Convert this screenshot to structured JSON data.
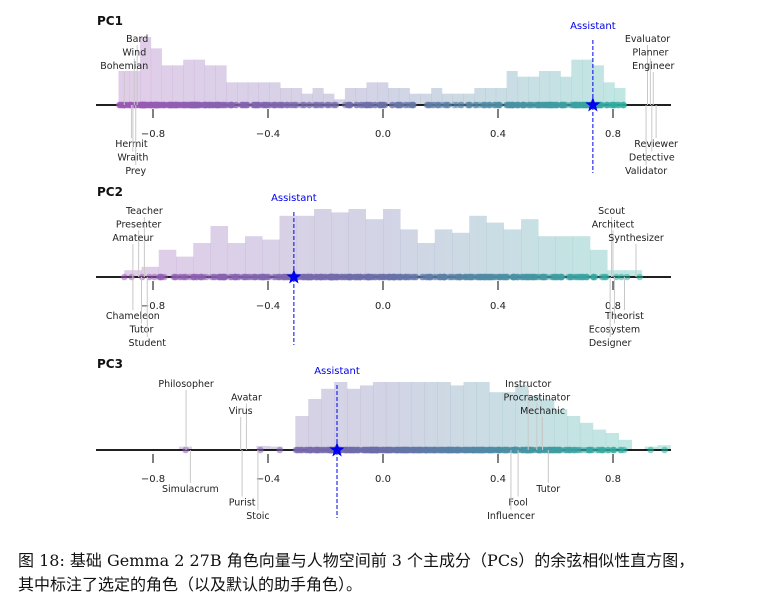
{
  "chart_data": [
    {
      "type": "histogram",
      "title": "PC1",
      "xlim": [
        -0.93,
        0.99
      ],
      "xticks": [
        -0.8,
        -0.4,
        0.0,
        0.4,
        0.8
      ],
      "xtick_labels": [
        "−0.8",
        "−0.4",
        "0.0",
        "0.4",
        "0.8"
      ],
      "bins_start": -0.92,
      "bin_width": 0.0375,
      "counts": [
        6,
        6,
        12,
        10,
        7,
        7,
        8,
        8,
        7,
        7,
        4,
        4,
        4,
        4,
        4,
        3,
        3,
        2,
        3,
        2,
        1,
        3,
        3,
        4,
        4,
        3,
        3,
        2,
        2,
        3,
        2,
        2,
        2,
        3,
        3,
        3,
        6,
        5,
        5,
        6,
        6,
        5,
        8,
        8,
        7,
        4,
        3,
        0
      ],
      "assistant": {
        "label": "Assistant",
        "value": 0.73
      },
      "annotations_above": [
        {
          "label": "Bard",
          "value": -0.855
        },
        {
          "label": "Wind",
          "value": -0.865
        },
        {
          "label": "Bohemian",
          "value": -0.9
        }
      ],
      "annotations_below": [
        {
          "label": "Hermit",
          "value": -0.875
        },
        {
          "label": "Wraith",
          "value": -0.87
        },
        {
          "label": "Prey",
          "value": -0.86
        }
      ],
      "annotations_above_right": [
        {
          "label": "Evaluator",
          "value": 0.92
        },
        {
          "label": "Planner",
          "value": 0.93
        },
        {
          "label": "Engineer",
          "value": 0.94
        }
      ],
      "annotations_below_right": [
        {
          "label": "Reviewer",
          "value": 0.95
        },
        {
          "label": "Detective",
          "value": 0.935
        },
        {
          "label": "Validator",
          "value": 0.915
        }
      ]
    },
    {
      "type": "histogram",
      "title": "PC2",
      "xlim": [
        -0.93,
        0.99
      ],
      "xticks": [
        -0.8,
        -0.4,
        0.0,
        0.4,
        0.8
      ],
      "xtick_labels": [
        "−0.8",
        "−0.4",
        "0.0",
        "0.4",
        "0.8"
      ],
      "bins_start": -0.9,
      "bin_width": 0.06,
      "counts": [
        1,
        1.5,
        4,
        3,
        5,
        7.5,
        5,
        6,
        5.5,
        9,
        9,
        10,
        9.5,
        10,
        8.5,
        10,
        7,
        5,
        7,
        6.5,
        9,
        8,
        7,
        8.5,
        6,
        6,
        6,
        4,
        1,
        1
      ],
      "assistant": {
        "label": "Assistant",
        "value": -0.31
      },
      "annotations_above": [
        {
          "label": "Teacher",
          "value": -0.83
        },
        {
          "label": "Presenter",
          "value": -0.85
        },
        {
          "label": "Amateur",
          "value": -0.87
        }
      ],
      "annotations_below": [
        {
          "label": "Chameleon",
          "value": -0.87
        },
        {
          "label": "Tutor",
          "value": -0.84
        },
        {
          "label": "Student",
          "value": -0.82
        }
      ],
      "annotations_above_right": [
        {
          "label": "Scout",
          "value": 0.795
        },
        {
          "label": "Architect",
          "value": 0.8
        },
        {
          "label": "Synthesizer",
          "value": 0.88
        }
      ],
      "annotations_below_right": [
        {
          "label": "Theorist",
          "value": 0.84
        },
        {
          "label": "Ecosystem",
          "value": 0.805
        },
        {
          "label": "Designer",
          "value": 0.79
        }
      ]
    },
    {
      "type": "histogram",
      "title": "PC3",
      "xlim": [
        -0.93,
        0.99
      ],
      "xticks": [
        -0.8,
        -0.4,
        0.0,
        0.4,
        0.8
      ],
      "xtick_labels": [
        "−0.8",
        "−0.4",
        "0.0",
        "0.4",
        "0.8"
      ],
      "bins_start": -0.71,
      "bin_width": 0.045,
      "counts": [
        0.5,
        0,
        0,
        0,
        0,
        0,
        0.6,
        0.5,
        0,
        5,
        7.5,
        9,
        10,
        9,
        9.5,
        10,
        10,
        10,
        10,
        10,
        10,
        9.5,
        10,
        10,
        8.5,
        8.5,
        9.5,
        8,
        7.5,
        6,
        5,
        4,
        3,
        2.5,
        1.5,
        0,
        0.5,
        0.7,
        0
      ]
    }
  ],
  "pc3_extra": {
    "assistant": {
      "label": "Assistant",
      "value": -0.16
    },
    "annotations_above": [
      {
        "label": "Philosopher",
        "value": -0.685
      },
      {
        "label": "Avatar",
        "value": -0.475
      },
      {
        "label": "Virus",
        "value": -0.495
      }
    ],
    "annotations_below": [
      {
        "label": "Simulacrum",
        "value": -0.67
      },
      {
        "label": "Purist",
        "value": -0.49
      },
      {
        "label": "Stoic",
        "value": -0.435
      }
    ],
    "annotations_above_right": [
      {
        "label": "Instructor",
        "value": 0.505
      },
      {
        "label": "Procrastinator",
        "value": 0.535
      },
      {
        "label": "Mechanic",
        "value": 0.555
      }
    ],
    "annotations_below_right": [
      {
        "label": "Tutor",
        "value": 0.575
      },
      {
        "label": "Fool",
        "value": 0.47
      },
      {
        "label": "Influencer",
        "value": 0.445
      }
    ]
  },
  "caption": {
    "line1": "图 18: 基础 Gemma 2 27B 角色向量与人物空间前 3 个主成分（PCs）的余弦相似性直方图，",
    "line2": "其中标注了选定的角色（以及默认的助手角色）。"
  },
  "colors": {
    "left": "#9b59b6",
    "mid": "#6a6fa8",
    "right": "#2ab3a0",
    "assistant": "#0000ee",
    "axis": "#000000",
    "annotation_line": "#c8c8c8",
    "label_text": "#222222"
  }
}
